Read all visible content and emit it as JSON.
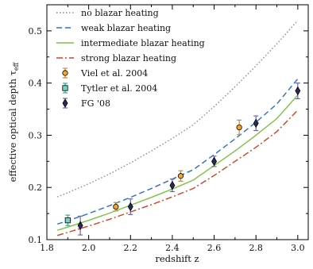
{
  "chart_data": {
    "type": "line",
    "xlabel": "redshift z",
    "ylabel": "effective optical depth τ",
    "ylabel_sub": "eff",
    "xlim": [
      1.8,
      3.05
    ],
    "ylim": [
      0.1,
      0.55
    ],
    "xticks": [
      1.8,
      2.0,
      2.2,
      2.4,
      2.6,
      2.8,
      3.0
    ],
    "xtick_labels": [
      "1.8",
      "2.0",
      "2.2",
      "2.4",
      "2.6",
      "2.8",
      "3.0"
    ],
    "yticks": [
      0.1,
      0.2,
      0.3,
      0.4,
      0.5
    ],
    "ytick_labels": [
      "0.1",
      "0.2",
      "0.3",
      "0.4",
      "0.5"
    ],
    "grid": false,
    "legend_position": "top-left",
    "lines": [
      {
        "name": "no blazar heating",
        "color": "#8c8c8c",
        "style": "dotted",
        "x": [
          1.85,
          1.9,
          2.0,
          2.1,
          2.2,
          2.3,
          2.4,
          2.5,
          2.6,
          2.7,
          2.8,
          2.9,
          3.0
        ],
        "y": [
          0.182,
          0.19,
          0.207,
          0.226,
          0.247,
          0.27,
          0.294,
          0.32,
          0.355,
          0.393,
          0.433,
          0.475,
          0.52
        ]
      },
      {
        "name": "weak blazar heating",
        "color": "#2e6ad0",
        "style": "dashed",
        "x": [
          1.85,
          1.9,
          2.0,
          2.1,
          2.2,
          2.3,
          2.4,
          2.5,
          2.6,
          2.7,
          2.8,
          2.9,
          3.0
        ],
        "y": [
          0.13,
          0.136,
          0.15,
          0.165,
          0.181,
          0.198,
          0.216,
          0.234,
          0.263,
          0.293,
          0.325,
          0.36,
          0.408
        ]
      },
      {
        "name": "intermediate blazar heating",
        "color": "#7dc243",
        "style": "solid",
        "x": [
          1.85,
          1.9,
          2.0,
          2.1,
          2.2,
          2.3,
          2.4,
          2.5,
          2.6,
          2.7,
          2.8,
          2.9,
          3.0
        ],
        "y": [
          0.118,
          0.124,
          0.137,
          0.151,
          0.166,
          0.181,
          0.197,
          0.214,
          0.242,
          0.27,
          0.3,
          0.332,
          0.377
        ]
      },
      {
        "name": "strong blazar heating",
        "color": "#d2401e",
        "style": "dashdot",
        "x": [
          1.85,
          1.9,
          2.0,
          2.1,
          2.2,
          2.3,
          2.4,
          2.5,
          2.6,
          2.7,
          2.8,
          2.9,
          3.0
        ],
        "y": [
          0.108,
          0.114,
          0.126,
          0.139,
          0.153,
          0.167,
          0.182,
          0.198,
          0.223,
          0.25,
          0.277,
          0.307,
          0.348
        ]
      }
    ],
    "points": [
      {
        "name": "Viel et al. 2004",
        "marker": "circle",
        "fill": "#f5a623",
        "err_color": "#c88a2a",
        "x": [
          2.13,
          2.44,
          2.72
        ],
        "y": [
          0.163,
          0.222,
          0.315
        ],
        "err": [
          0.008,
          0.01,
          0.014
        ]
      },
      {
        "name": "Tytler et al. 2004",
        "marker": "square",
        "fill": "#6fd3c6",
        "err_color": "#3aa39a",
        "x": [
          1.9
        ],
        "y": [
          0.137
        ],
        "err": [
          0.01
        ]
      },
      {
        "name": "FG '08",
        "marker": "diamond",
        "fill": "#2a2a5e",
        "err_color": "#6b66a8",
        "x": [
          1.96,
          2.2,
          2.4,
          2.6,
          2.8,
          3.0
        ],
        "y": [
          0.127,
          0.163,
          0.204,
          0.25,
          0.323,
          0.385
        ],
        "err": [
          0.018,
          0.015,
          0.012,
          0.01,
          0.014,
          0.015
        ]
      }
    ]
  }
}
